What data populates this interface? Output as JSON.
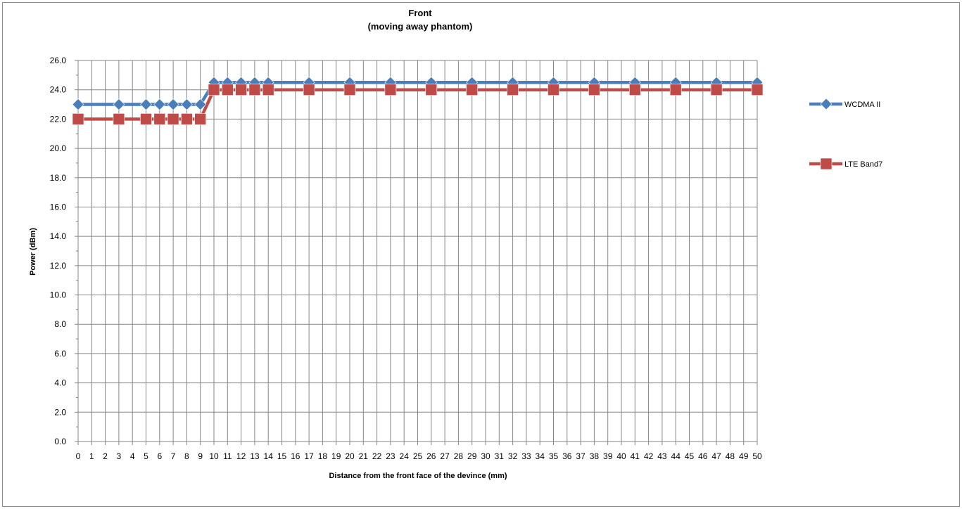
{
  "chart_data": {
    "type": "line",
    "title": "Front",
    "subtitle": "(moving away phantom)",
    "xlabel": "Distance from the front face of the devince (mm)",
    "ylabel": "Power (dBm)",
    "x_ticks": [
      "0",
      "1",
      "2",
      "3",
      "4",
      "5",
      "6",
      "7",
      "8",
      "9",
      "10",
      "11",
      "12",
      "13",
      "14",
      "15",
      "16",
      "17",
      "18",
      "19",
      "20",
      "21",
      "22",
      "23",
      "24",
      "25",
      "26",
      "27",
      "28",
      "29",
      "30",
      "31",
      "32",
      "33",
      "34",
      "35",
      "36",
      "37",
      "38",
      "39",
      "40",
      "41",
      "42",
      "43",
      "44",
      "45",
      "46",
      "47",
      "48",
      "49",
      "50"
    ],
    "y_ticks": [
      "0.0",
      "2.0",
      "4.0",
      "6.0",
      "8.0",
      "10.0",
      "12.0",
      "14.0",
      "16.0",
      "18.0",
      "20.0",
      "22.0",
      "24.0",
      "26.0"
    ],
    "xlim": [
      0,
      50
    ],
    "ylim": [
      0,
      26
    ],
    "grid": true,
    "legend_position": "right",
    "series": [
      {
        "name": "WCDMA II",
        "color": "#4a7ebb",
        "marker": "diamond",
        "x": [
          0,
          3,
          5,
          6,
          7,
          8,
          9,
          10,
          11,
          12,
          13,
          14,
          17,
          20,
          23,
          26,
          29,
          32,
          35,
          38,
          41,
          44,
          47,
          50
        ],
        "values": [
          23.0,
          23.0,
          23.0,
          23.0,
          23.0,
          23.0,
          23.0,
          24.5,
          24.5,
          24.5,
          24.5,
          24.5,
          24.5,
          24.5,
          24.5,
          24.5,
          24.5,
          24.5,
          24.5,
          24.5,
          24.5,
          24.5,
          24.5,
          24.5
        ]
      },
      {
        "name": "LTE Band7",
        "color": "#be4b48",
        "marker": "square",
        "x": [
          0,
          3,
          5,
          6,
          7,
          8,
          9,
          10,
          11,
          12,
          13,
          14,
          17,
          20,
          23,
          26,
          29,
          32,
          35,
          38,
          41,
          44,
          47,
          50
        ],
        "values": [
          22.0,
          22.0,
          22.0,
          22.0,
          22.0,
          22.0,
          22.0,
          24.0,
          24.0,
          24.0,
          24.0,
          24.0,
          24.0,
          24.0,
          24.0,
          24.0,
          24.0,
          24.0,
          24.0,
          24.0,
          24.0,
          24.0,
          24.0,
          24.0
        ]
      }
    ]
  }
}
